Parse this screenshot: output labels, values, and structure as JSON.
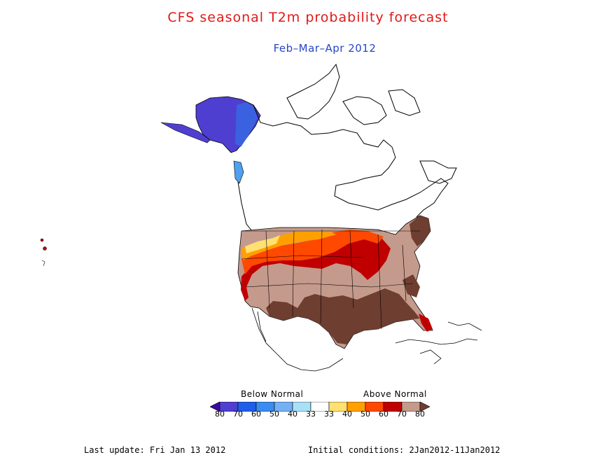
{
  "header": {
    "title": "CFS seasonal T2m probability forecast",
    "subtitle": "Feb–Mar–Apr 2012"
  },
  "legend": {
    "below_label": "Below Normal",
    "above_label": "Above Normal",
    "ticks": [
      "80",
      "70",
      "60",
      "50",
      "40",
      "33",
      "33",
      "40",
      "50",
      "60",
      "70",
      "80"
    ],
    "colors": [
      "#3a0aa0",
      "#4f3fd0",
      "#1f5ee8",
      "#3a8cf0",
      "#74b0f4",
      "#a8e0f8",
      "#ffffff",
      "#ffe070",
      "#ffa000",
      "#ff4800",
      "#c00000",
      "#c49a8c",
      "#6e3e30"
    ]
  },
  "footer": {
    "last_update": "Last update: Fri Jan 13 2012",
    "initial_conditions": "Initial conditions: 2Jan2012-11Jan2012"
  }
}
